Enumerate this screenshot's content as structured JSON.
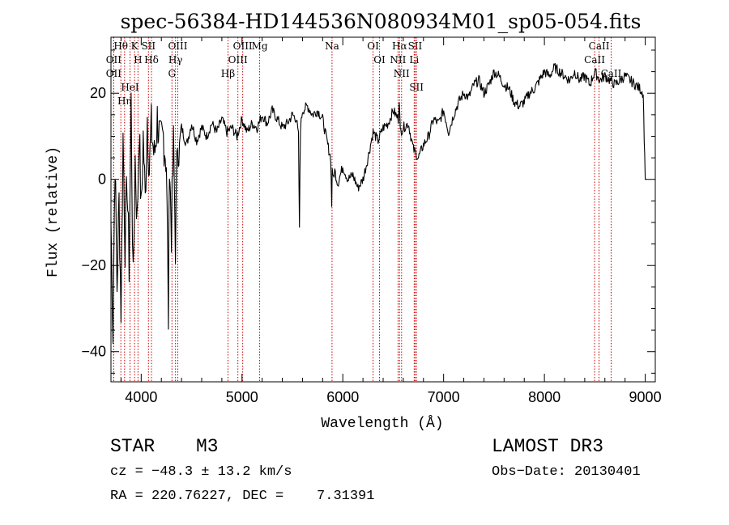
{
  "chart_data": {
    "type": "line",
    "title": "spec-56384-HD144536N080934M01_sp05-054.fits",
    "xlabel": "Wavelength (Å)",
    "ylabel": "Flux (relative)",
    "xlim": [
      3700,
      9100
    ],
    "ylim": [
      -47,
      33
    ],
    "xticks": [
      4000,
      5000,
      6000,
      7000,
      8000,
      9000
    ],
    "yticks": [
      -40,
      -20,
      0,
      20
    ],
    "line_color": "#000000",
    "marker_color": "#cc0000",
    "series": [
      {
        "name": "flux",
        "x": [
          3700,
          3720,
          3740,
          3760,
          3780,
          3800,
          3820,
          3840,
          3860,
          3880,
          3900,
          3920,
          3940,
          3960,
          3980,
          4000,
          4020,
          4040,
          4060,
          4080,
          4100,
          4130,
          4160,
          4190,
          4220,
          4250,
          4270,
          4280,
          4290,
          4300,
          4320,
          4340,
          4360,
          4380,
          4400,
          4450,
          4500,
          4550,
          4600,
          4650,
          4700,
          4750,
          4800,
          4850,
          4900,
          4950,
          5000,
          5050,
          5100,
          5150,
          5200,
          5250,
          5300,
          5350,
          5400,
          5450,
          5500,
          5540,
          5560,
          5570,
          5575,
          5580,
          5600,
          5650,
          5700,
          5750,
          5800,
          5850,
          5880,
          5890,
          5895,
          5900,
          5920,
          5950,
          6000,
          6050,
          6100,
          6150,
          6200,
          6250,
          6300,
          6350,
          6400,
          6450,
          6500,
          6550,
          6560,
          6570,
          6600,
          6650,
          6700,
          6750,
          6800,
          6850,
          6900,
          6950,
          7000,
          7050,
          7100,
          7150,
          7200,
          7250,
          7300,
          7350,
          7400,
          7450,
          7500,
          7550,
          7600,
          7650,
          7700,
          7750,
          7800,
          7850,
          7900,
          7950,
          8000,
          8050,
          8100,
          8150,
          8200,
          8250,
          8300,
          8350,
          8400,
          8450,
          8500,
          8550,
          8600,
          8650,
          8700,
          8750,
          8800,
          8850,
          8900,
          8950,
          8980,
          8990,
          9000,
          9020
        ],
        "y": [
          -10,
          -35,
          5,
          -25,
          -5,
          -30,
          10,
          -15,
          0,
          -20,
          18,
          -25,
          5,
          -10,
          12,
          -8,
          10,
          -5,
          15,
          2,
          12,
          5,
          14,
          8,
          10,
          4,
          -32,
          6,
          -4,
          -12,
          8,
          -15,
          10,
          6,
          12,
          8,
          13,
          9,
          12,
          10,
          13,
          11,
          14,
          11,
          12,
          10,
          14,
          11,
          13,
          12,
          15,
          13,
          16,
          14,
          12,
          13,
          15,
          14,
          10,
          -12,
          2,
          12,
          16,
          17,
          15,
          16,
          14,
          8,
          5,
          -6,
          3,
          0,
          2,
          -1,
          3,
          0,
          1,
          -2,
          0,
          5,
          11,
          9,
          12,
          13,
          16,
          14,
          19,
          11,
          12,
          13,
          7,
          5,
          8,
          10,
          14,
          13,
          16,
          11,
          15,
          18,
          20,
          19,
          22,
          23,
          20,
          22,
          25,
          24,
          22,
          21,
          18,
          17,
          18,
          20,
          21,
          23,
          25,
          24,
          26,
          25,
          24,
          23,
          25,
          23,
          24,
          22,
          25,
          23,
          24,
          23,
          22,
          23,
          24,
          23,
          22,
          21,
          20,
          10,
          0,
          0
        ],
        "noise": [
          {
            "from": 3700,
            "to": 4400,
            "amplitude": 6
          },
          {
            "from": 4400,
            "to": 9000,
            "amplitude": 1.2
          }
        ]
      }
    ],
    "line_markers": [
      {
        "name": "Hθ",
        "x": 3798
      },
      {
        "name": "OII",
        "x": 3727
      },
      {
        "name": "OII",
        "x": 3727
      },
      {
        "name": "K",
        "x": 3934
      },
      {
        "name": "HeI",
        "x": 3889
      },
      {
        "name": "Hη",
        "x": 3835
      },
      {
        "name": "SII",
        "x": 4072
      },
      {
        "name": "H",
        "x": 3968
      },
      {
        "name": "Hδ",
        "x": 4102
      },
      {
        "name": "OIII",
        "x": 4363
      },
      {
        "name": "Hγ",
        "x": 4340
      },
      {
        "name": "G",
        "x": 4305
      },
      {
        "name": "OIII",
        "x": 5007
      },
      {
        "name": "OIII",
        "x": 4959
      },
      {
        "name": "Hβ",
        "x": 4861
      },
      {
        "name": "Mg",
        "x": 5175
      },
      {
        "name": "Na",
        "x": 5893
      },
      {
        "name": "OI",
        "x": 6300
      },
      {
        "name": "OI",
        "x": 6364
      },
      {
        "name": "Hα",
        "x": 6563
      },
      {
        "name": "SII",
        "x": 6717
      },
      {
        "name": "NII",
        "x": 6548
      },
      {
        "name": "Li",
        "x": 6708
      },
      {
        "name": "NII",
        "x": 6583
      },
      {
        "name": "SII",
        "x": 6731
      },
      {
        "name": "CaII",
        "x": 8542
      },
      {
        "name": "CaII",
        "x": 8498
      },
      {
        "name": "CaII",
        "x": 8662
      }
    ]
  },
  "footer": {
    "object_type": "STAR",
    "subclass": "M3",
    "survey": "LAMOST DR3",
    "cz": "cz = −48.3 ± 13.2 km/s",
    "obs_date": "Obs−Date: 20130401",
    "coords": "RA = 220.76227, DEC =    7.31391"
  }
}
